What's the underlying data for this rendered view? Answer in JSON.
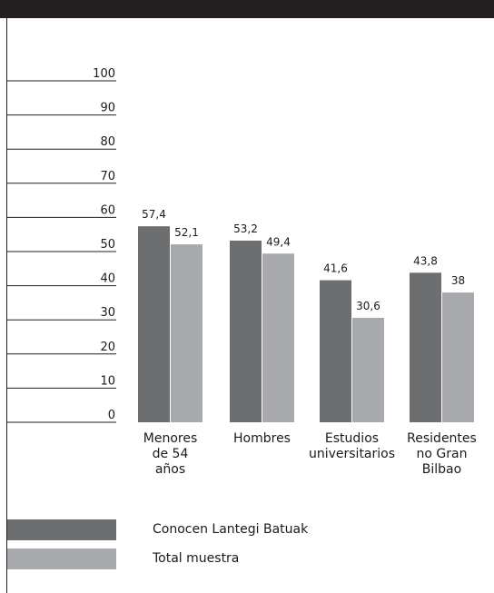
{
  "chart_data": {
    "type": "bar",
    "title": "",
    "xlabel": "",
    "ylabel": "",
    "ylim": [
      0,
      100
    ],
    "yticks": [
      "0",
      "10",
      "20",
      "30",
      "40",
      "50",
      "60",
      "70",
      "80",
      "90",
      "100"
    ],
    "categories": [
      [
        "Menores",
        "de 54",
        "años"
      ],
      [
        "Hombres"
      ],
      [
        "Estudios",
        "universitarios"
      ],
      [
        "Residentes",
        "no Gran",
        "Bilbao"
      ]
    ],
    "series": [
      {
        "name": "Conocen Lantegi Batuak",
        "color": "#6d6e70",
        "values": [
          57.4,
          53.2,
          41.6,
          43.8
        ],
        "labels": [
          "57,4",
          "53,2",
          "41,6",
          "43,8"
        ]
      },
      {
        "name": "Total muestra",
        "color": "#a7a9ac",
        "values": [
          52.1,
          49.4,
          30.6,
          38
        ],
        "labels": [
          "52,1",
          "49,4",
          "30,6",
          "38"
        ]
      }
    ],
    "grid": false,
    "legend_position": "bottom-left"
  }
}
